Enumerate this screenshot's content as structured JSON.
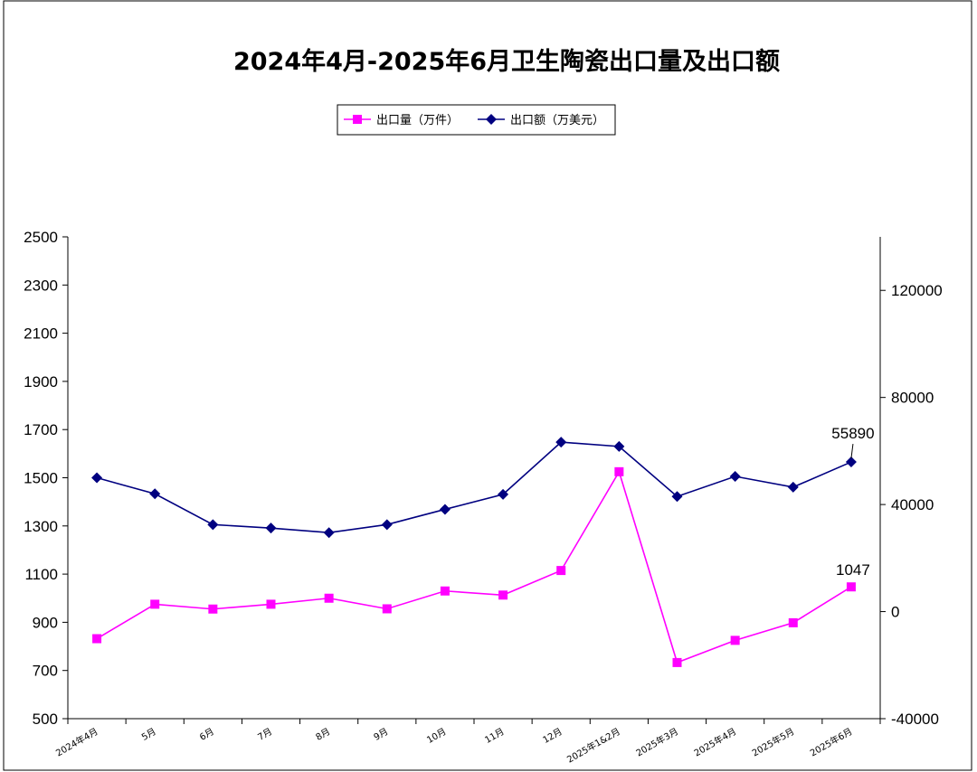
{
  "chart_data": {
    "type": "line",
    "title": "2024年4月-2025年6月卫生陶瓷出口量及出口额",
    "categories": [
      "2024年4月",
      "5月",
      "6月",
      "7月",
      "8月",
      "9月",
      "10月",
      "11月",
      "12月",
      "2025年1&2月",
      "2025年3月",
      "2025年4月",
      "2025年5月",
      "2025年6月"
    ],
    "series": [
      {
        "name": "出口量（万件）",
        "axis": "left",
        "color": "#ff00ff",
        "marker": "square",
        "values": [
          832,
          975,
          955,
          975,
          1000,
          956,
          1030,
          1013,
          1115,
          1525,
          733,
          825,
          898,
          1047
        ]
      },
      {
        "name": "出口额（万美元）",
        "axis": "right",
        "color": "#000080",
        "marker": "diamond",
        "values": [
          50000,
          44000,
          32500,
          31200,
          29500,
          32500,
          38200,
          43800,
          63300,
          61700,
          43000,
          50500,
          46500,
          55890
        ]
      }
    ],
    "y_left": {
      "ylim": [
        500,
        2500
      ],
      "ticks": [
        "2500",
        "2300",
        "2100",
        "1900",
        "1700",
        "1500",
        "1300",
        "1100",
        "900",
        "700",
        "500"
      ]
    },
    "y_right": {
      "ylim": [
        -40000,
        140000
      ],
      "ticks": [
        "120000",
        "80000",
        "40000",
        "0",
        "-40000"
      ]
    },
    "data_labels": [
      {
        "series": 0,
        "index": 13,
        "text": "1047"
      },
      {
        "series": 1,
        "index": 13,
        "text": "55890"
      }
    ],
    "legend": {
      "placement": "top-center"
    },
    "grid": false
  }
}
